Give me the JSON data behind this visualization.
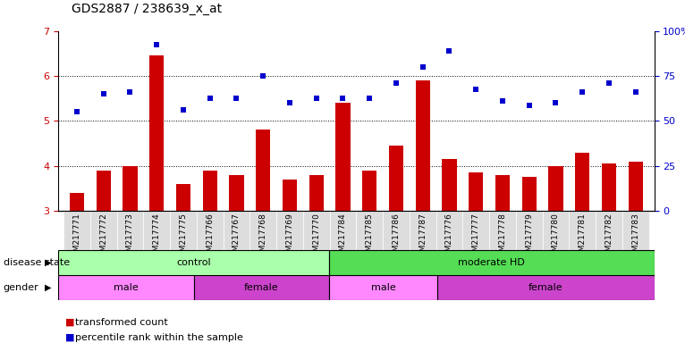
{
  "title": "GDS2887 / 238639_x_at",
  "samples": [
    "GSM217771",
    "GSM217772",
    "GSM217773",
    "GSM217774",
    "GSM217775",
    "GSM217766",
    "GSM217767",
    "GSM217768",
    "GSM217769",
    "GSM217770",
    "GSM217784",
    "GSM217785",
    "GSM217786",
    "GSM217787",
    "GSM217776",
    "GSM217777",
    "GSM217778",
    "GSM217779",
    "GSM217780",
    "GSM217781",
    "GSM217782",
    "GSM217783"
  ],
  "bar_values": [
    3.4,
    3.9,
    4.0,
    6.45,
    3.6,
    3.9,
    3.8,
    4.8,
    3.7,
    3.8,
    5.4,
    3.9,
    4.45,
    5.9,
    4.15,
    3.85,
    3.8,
    3.75,
    4.0,
    4.3,
    4.05,
    4.1
  ],
  "dot_values": [
    5.2,
    5.6,
    5.65,
    6.7,
    5.25,
    5.5,
    5.5,
    6.0,
    5.4,
    5.5,
    5.5,
    5.5,
    5.85,
    6.2,
    6.55,
    5.7,
    5.45,
    5.35,
    5.4,
    5.65,
    5.85,
    5.65
  ],
  "ylim": [
    3.0,
    7.0
  ],
  "yticks_left": [
    3,
    4,
    5,
    6,
    7
  ],
  "right_ytick_positions": [
    0,
    25,
    50,
    75,
    100
  ],
  "right_ylabels": [
    "0",
    "25",
    "50",
    "75",
    "100%"
  ],
  "bar_color": "#CC0000",
  "dot_color": "#0000CC",
  "bg_color": "#FFFFFF",
  "plot_bg": "#FFFFFF",
  "xtick_bg": "#DDDDDD",
  "disease_state_groups": [
    {
      "label": "control",
      "start": 0,
      "end": 10,
      "color": "#AAFFAA"
    },
    {
      "label": "moderate HD",
      "start": 10,
      "end": 22,
      "color": "#55DD55"
    }
  ],
  "gender_groups": [
    {
      "label": "male",
      "start": 0,
      "end": 5,
      "color": "#FF88FF"
    },
    {
      "label": "female",
      "start": 5,
      "end": 10,
      "color": "#CC44CC"
    },
    {
      "label": "male",
      "start": 10,
      "end": 14,
      "color": "#FF88FF"
    },
    {
      "label": "female",
      "start": 14,
      "end": 22,
      "color": "#CC44CC"
    }
  ],
  "legend_bar_label": "transformed count",
  "legend_dot_label": "percentile rank within the sample",
  "disease_state_label": "disease state",
  "gender_label": "gender",
  "title_fontsize": 10,
  "tick_fontsize": 8,
  "label_fontsize": 8,
  "xtick_fontsize": 6.5
}
